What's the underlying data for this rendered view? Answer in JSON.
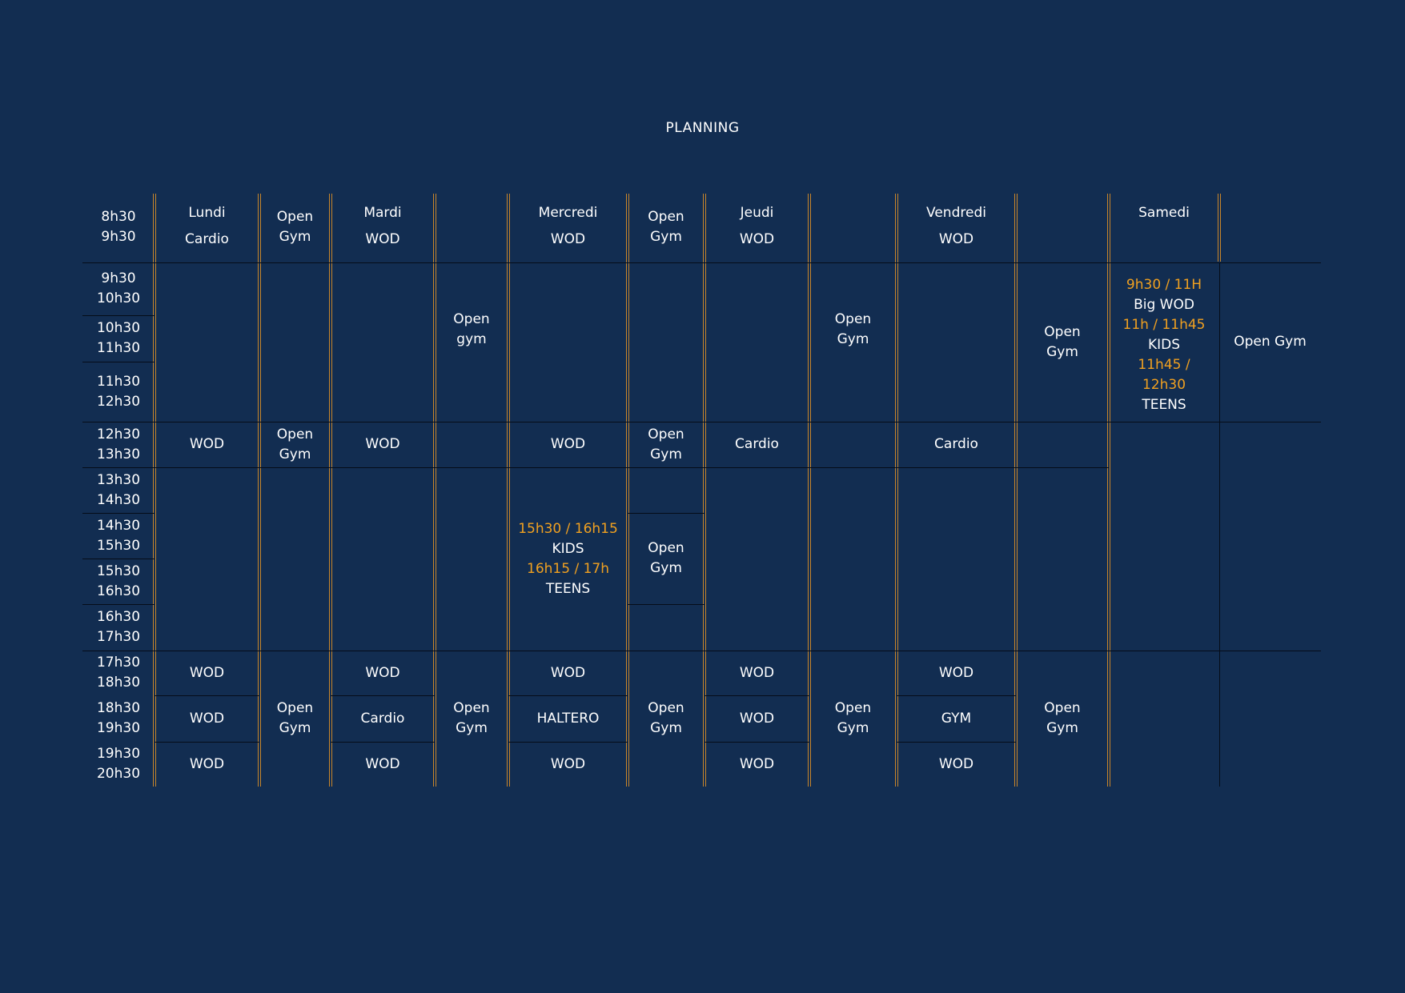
{
  "title": "PLANNING",
  "colors": {
    "background": "#122d51",
    "text": "#ffffff",
    "accent": "#f0a020",
    "separator": "#c9862a"
  },
  "times": [
    [
      "8h30",
      "9h30"
    ],
    [
      "9h30",
      "10h30"
    ],
    [
      "10h30",
      "11h30"
    ],
    [
      "11h30",
      "12h30"
    ],
    [
      "12h30",
      "13h30"
    ],
    [
      "13h30",
      "14h30"
    ],
    [
      "14h30",
      "15h30"
    ],
    [
      "15h30",
      "16h30"
    ],
    [
      "16h30",
      "17h30"
    ],
    [
      "17h30",
      "18h30"
    ],
    [
      "18h30",
      "19h30"
    ],
    [
      "19h30",
      "20h30"
    ]
  ],
  "days": {
    "lundi": {
      "name": "Lundi",
      "cells": [
        "Cardio",
        "WOD",
        "WOD",
        "WOD",
        "WOD"
      ]
    },
    "mardi": {
      "name": "Mardi",
      "cells": [
        "WOD",
        "WOD",
        "WOD",
        "Cardio",
        "WOD"
      ]
    },
    "mercredi": {
      "name": "Mercredi",
      "cells": [
        "WOD",
        "WOD",
        "WOD",
        "HALTERO",
        "WOD"
      ],
      "afternoon": [
        "15h30 / 16h15",
        "KIDS",
        "16h15 / 17h",
        "TEENS"
      ]
    },
    "jeudi": {
      "name": "Jeudi",
      "cells": [
        "WOD",
        "Cardio",
        "WOD",
        "WOD",
        "WOD"
      ]
    },
    "vendredi": {
      "name": "Vendredi",
      "cells": [
        "WOD",
        "Cardio",
        "WOD",
        "GYM",
        "WOD"
      ]
    },
    "samedi": {
      "name": "Samedi",
      "morning": [
        "9h30 / 11H",
        "Big WOD",
        "11h / 11h45",
        "KIDS",
        "11h45 /",
        "12h30",
        "TEENS"
      ]
    }
  },
  "open_gym": {
    "c1": [
      [
        "Open",
        "Gym"
      ],
      [
        "Open",
        "Gym"
      ],
      [
        "Open",
        "Gym"
      ]
    ],
    "c2": [
      [
        "Open",
        "gym"
      ],
      [
        "Open",
        "Gym"
      ]
    ],
    "c3": [
      [
        "Open",
        "Gym"
      ],
      [
        "Open",
        "Gym"
      ],
      [
        "Open",
        "Gym"
      ],
      [
        "Open",
        "Gym"
      ]
    ],
    "c4": [
      [
        "Open",
        "Gym"
      ],
      [
        "Open",
        "Gym"
      ]
    ],
    "c5": [
      [
        "Open",
        "Gym"
      ],
      [
        "Open",
        "Gym"
      ]
    ],
    "c6": "Open Gym"
  }
}
